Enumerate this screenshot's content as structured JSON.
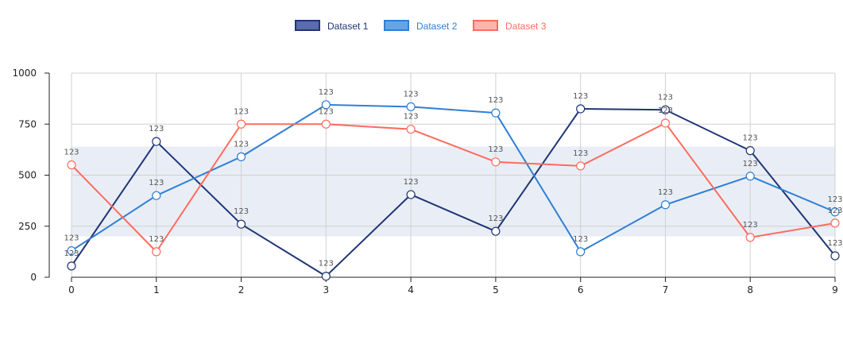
{
  "chart_data": {
    "type": "line",
    "x": [
      0,
      1,
      2,
      3,
      4,
      5,
      6,
      7,
      8,
      9
    ],
    "ylim": [
      0,
      1000
    ],
    "yticks": [
      0,
      250,
      500,
      750,
      1000
    ],
    "xticks": [
      0,
      1,
      2,
      3,
      4,
      5,
      6,
      7,
      8,
      9
    ],
    "band": [
      200,
      640
    ],
    "grid": true,
    "legend": "top-center",
    "point_label": "123",
    "series": [
      {
        "name": "Dataset 1",
        "color": "#1f3575",
        "fill": "#5b6bab",
        "labels_above": true,
        "values": [
          55,
          665,
          260,
          5,
          405,
          225,
          825,
          820,
          620,
          105
        ]
      },
      {
        "name": "Dataset 2",
        "color": "#2f7fd6",
        "fill": "#64a4e8",
        "labels_above": true,
        "values": [
          130,
          400,
          590,
          845,
          835,
          805,
          125,
          355,
          495,
          320
        ]
      },
      {
        "name": "Dataset 3",
        "color": "#ff6b5e",
        "fill": "#ffb3ae",
        "labels_above": true,
        "values": [
          550,
          125,
          750,
          750,
          725,
          565,
          545,
          755,
          195,
          265
        ]
      }
    ]
  }
}
